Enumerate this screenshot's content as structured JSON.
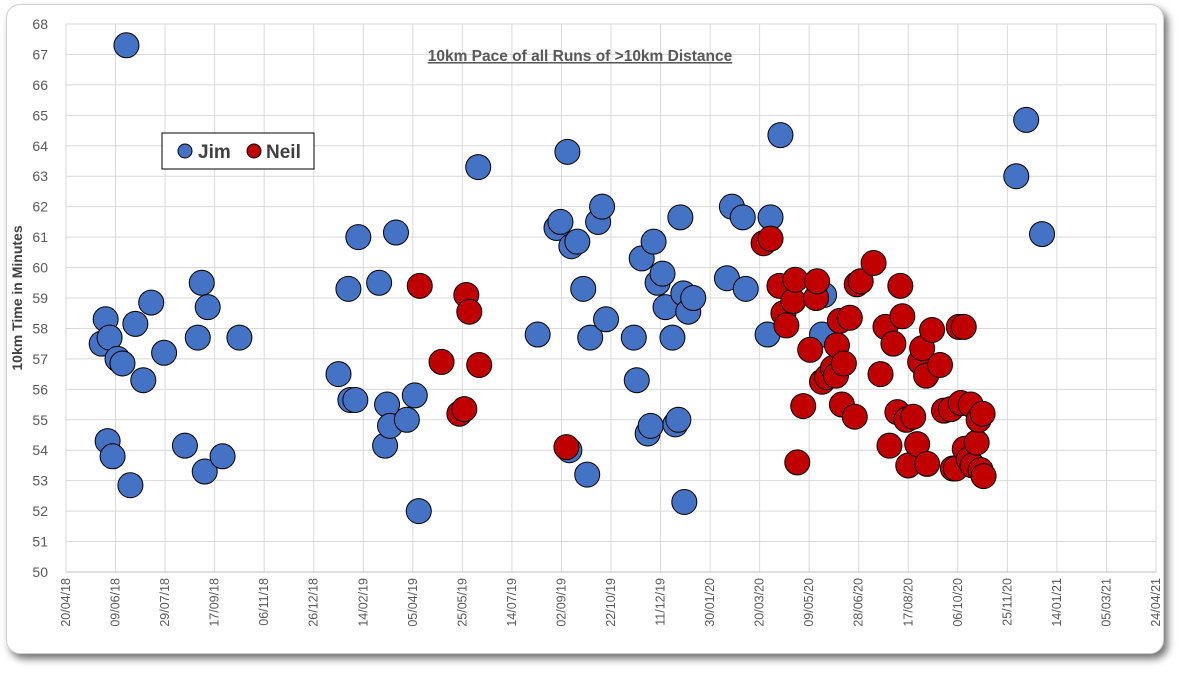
{
  "chart_data": {
    "type": "scatter",
    "title": "10km Pace of all Runs of >10km Distance",
    "ylabel": "10km Time in Minutes",
    "xlabel": "",
    "ylim": [
      50,
      68
    ],
    "yticks": [
      "50",
      "51",
      "52",
      "53",
      "54",
      "55",
      "56",
      "57",
      "58",
      "59",
      "60",
      "61",
      "62",
      "63",
      "64",
      "65",
      "66",
      "67",
      "68"
    ],
    "xlim": [
      "20/04/18",
      "24/04/21"
    ],
    "xticks": [
      "20/04/18",
      "09/06/18",
      "29/07/18",
      "17/09/18",
      "06/11/18",
      "26/12/18",
      "14/02/19",
      "05/04/19",
      "25/05/19",
      "14/07/19",
      "02/09/19",
      "22/10/19",
      "11/12/19",
      "30/01/20",
      "20/03/20",
      "09/05/20",
      "28/06/20",
      "17/08/20",
      "06/10/20",
      "25/11/20",
      "14/01/21",
      "05/03/21",
      "24/04/21"
    ],
    "grid": true,
    "legend_position": "top-left",
    "series": [
      {
        "name": "Jim",
        "color": "#4472C4",
        "points": [
          {
            "x": "26/05/18",
            "y": 57.5
          },
          {
            "x": "30/05/18",
            "y": 58.3
          },
          {
            "x": "01/06/18",
            "y": 54.3
          },
          {
            "x": "03/06/18",
            "y": 57.7
          },
          {
            "x": "06/06/18",
            "y": 53.8
          },
          {
            "x": "11/06/18",
            "y": 57.0
          },
          {
            "x": "16/06/18",
            "y": 56.85
          },
          {
            "x": "20/06/18",
            "y": 67.3
          },
          {
            "x": "24/06/18",
            "y": 52.85
          },
          {
            "x": "29/06/18",
            "y": 58.15
          },
          {
            "x": "07/07/18",
            "y": 56.3
          },
          {
            "x": "15/07/18",
            "y": 58.85
          },
          {
            "x": "28/07/18",
            "y": 57.2
          },
          {
            "x": "18/08/18",
            "y": 54.15
          },
          {
            "x": "31/08/18",
            "y": 57.7
          },
          {
            "x": "04/09/18",
            "y": 59.5
          },
          {
            "x": "07/09/18",
            "y": 53.3
          },
          {
            "x": "10/09/18",
            "y": 58.7
          },
          {
            "x": "25/09/18",
            "y": 53.8
          },
          {
            "x": "12/10/18",
            "y": 57.7
          },
          {
            "x": "20/01/19",
            "y": 56.5
          },
          {
            "x": "30/01/19",
            "y": 59.3
          },
          {
            "x": "01/02/19",
            "y": 55.65
          },
          {
            "x": "06/02/19",
            "y": 55.65
          },
          {
            "x": "09/02/19",
            "y": 61.0
          },
          {
            "x": "02/03/19",
            "y": 59.5
          },
          {
            "x": "08/03/19",
            "y": 54.15
          },
          {
            "x": "10/03/19",
            "y": 55.5
          },
          {
            "x": "13/03/19",
            "y": 54.8
          },
          {
            "x": "19/03/19",
            "y": 61.15
          },
          {
            "x": "30/03/19",
            "y": 55.0
          },
          {
            "x": "07/04/19",
            "y": 55.8
          },
          {
            "x": "11/04/19",
            "y": 52.0
          },
          {
            "x": "10/06/19",
            "y": 63.3
          },
          {
            "x": "09/08/19",
            "y": 57.8
          },
          {
            "x": "28/08/19",
            "y": 61.3
          },
          {
            "x": "01/09/19",
            "y": 61.5
          },
          {
            "x": "08/09/19",
            "y": 63.8
          },
          {
            "x": "12/09/19",
            "y": 60.7
          },
          {
            "x": "10/09/19",
            "y": 54.0
          },
          {
            "x": "18/09/19",
            "y": 60.85
          },
          {
            "x": "24/09/19",
            "y": 59.3
          },
          {
            "x": "28/09/19",
            "y": 53.2
          },
          {
            "x": "01/10/19",
            "y": 57.7
          },
          {
            "x": "09/10/19",
            "y": 61.5
          },
          {
            "x": "13/10/19",
            "y": 62.0
          },
          {
            "x": "17/10/19",
            "y": 58.3
          },
          {
            "x": "14/11/19",
            "y": 57.7
          },
          {
            "x": "17/11/19",
            "y": 56.3
          },
          {
            "x": "22/11/19",
            "y": 60.3
          },
          {
            "x": "28/11/19",
            "y": 54.55
          },
          {
            "x": "01/12/19",
            "y": 54.8
          },
          {
            "x": "04/12/19",
            "y": 60.85
          },
          {
            "x": "08/12/19",
            "y": 59.5
          },
          {
            "x": "13/12/19",
            "y": 59.8
          },
          {
            "x": "16/12/19",
            "y": 58.7
          },
          {
            "x": "23/12/19",
            "y": 57.7
          },
          {
            "x": "26/12/19",
            "y": 54.85
          },
          {
            "x": "29/12/19",
            "y": 55.0
          },
          {
            "x": "31/12/19",
            "y": 61.65
          },
          {
            "x": "04/01/20",
            "y": 52.3
          },
          {
            "x": "03/01/20",
            "y": 59.15
          },
          {
            "x": "08/01/20",
            "y": 58.55
          },
          {
            "x": "13/01/20",
            "y": 59.0
          },
          {
            "x": "16/02/20",
            "y": 59.65
          },
          {
            "x": "21/02/20",
            "y": 62.0
          },
          {
            "x": "03/03/20",
            "y": 61.65
          },
          {
            "x": "06/03/20",
            "y": 59.3
          },
          {
            "x": "28/03/20",
            "y": 57.8
          },
          {
            "x": "31/03/20",
            "y": 61.65
          },
          {
            "x": "10/04/20",
            "y": 64.35
          },
          {
            "x": "22/05/20",
            "y": 57.8
          },
          {
            "x": "24/05/20",
            "y": 59.1
          },
          {
            "x": "04/12/20",
            "y": 63.0
          },
          {
            "x": "14/12/20",
            "y": 64.85
          },
          {
            "x": "30/12/20",
            "y": 61.1
          }
        ]
      },
      {
        "name": "Neil",
        "color": "#C00000",
        "points": [
          {
            "x": "12/04/19",
            "y": 59.4
          },
          {
            "x": "04/05/19",
            "y": 56.9
          },
          {
            "x": "22/05/19",
            "y": 55.2
          },
          {
            "x": "27/05/19",
            "y": 55.35
          },
          {
            "x": "29/05/19",
            "y": 59.1
          },
          {
            "x": "01/06/19",
            "y": 58.55
          },
          {
            "x": "11/06/19",
            "y": 56.8
          },
          {
            "x": "07/09/19",
            "y": 54.1
          },
          {
            "x": "24/03/20",
            "y": 60.8
          },
          {
            "x": "31/03/20",
            "y": 60.95
          },
          {
            "x": "09/04/20",
            "y": 59.4
          },
          {
            "x": "13/04/20",
            "y": 58.5
          },
          {
            "x": "16/04/20",
            "y": 58.1
          },
          {
            "x": "23/04/20",
            "y": 58.9
          },
          {
            "x": "25/04/20",
            "y": 59.6
          },
          {
            "x": "27/04/20",
            "y": 53.6
          },
          {
            "x": "03/05/20",
            "y": 55.45
          },
          {
            "x": "10/05/20",
            "y": 57.3
          },
          {
            "x": "16/05/20",
            "y": 59.0
          },
          {
            "x": "17/05/20",
            "y": 59.55
          },
          {
            "x": "22/05/20",
            "y": 56.25
          },
          {
            "x": "27/05/20",
            "y": 56.4
          },
          {
            "x": "02/06/20",
            "y": 56.7
          },
          {
            "x": "05/06/20",
            "y": 56.45
          },
          {
            "x": "06/06/20",
            "y": 57.45
          },
          {
            "x": "09/06/20",
            "y": 58.25
          },
          {
            "x": "11/06/20",
            "y": 55.5
          },
          {
            "x": "13/06/20",
            "y": 56.85
          },
          {
            "x": "19/06/20",
            "y": 58.35
          },
          {
            "x": "24/06/20",
            "y": 55.1
          },
          {
            "x": "26/06/20",
            "y": 59.45
          },
          {
            "x": "30/06/20",
            "y": 59.55
          },
          {
            "x": "13/07/20",
            "y": 60.15
          },
          {
            "x": "20/07/20",
            "y": 56.5
          },
          {
            "x": "25/07/20",
            "y": 58.05
          },
          {
            "x": "29/07/20",
            "y": 54.15
          },
          {
            "x": "02/08/20",
            "y": 57.5
          },
          {
            "x": "06/08/20",
            "y": 55.25
          },
          {
            "x": "09/08/20",
            "y": 59.4
          },
          {
            "x": "11/08/20",
            "y": 58.4
          },
          {
            "x": "15/08/20",
            "y": 55.0
          },
          {
            "x": "17/08/20",
            "y": 53.5
          },
          {
            "x": "22/08/20",
            "y": 55.1
          },
          {
            "x": "26/08/20",
            "y": 54.2
          },
          {
            "x": "29/08/20",
            "y": 56.9
          },
          {
            "x": "31/08/20",
            "y": 57.35
          },
          {
            "x": "04/09/20",
            "y": 56.45
          },
          {
            "x": "05/09/20",
            "y": 53.55
          },
          {
            "x": "10/09/20",
            "y": 57.95
          },
          {
            "x": "18/09/20",
            "y": 56.8
          },
          {
            "x": "22/09/20",
            "y": 55.3
          },
          {
            "x": "29/09/20",
            "y": 55.35
          },
          {
            "x": "01/10/20",
            "y": 53.4
          },
          {
            "x": "04/10/20",
            "y": 53.4
          },
          {
            "x": "07/10/20",
            "y": 58.05
          },
          {
            "x": "09/10/20",
            "y": 55.55
          },
          {
            "x": "12/10/20",
            "y": 58.05
          },
          {
            "x": "13/10/20",
            "y": 54.05
          },
          {
            "x": "17/10/20",
            "y": 53.7
          },
          {
            "x": "19/10/20",
            "y": 55.5
          },
          {
            "x": "21/10/20",
            "y": 53.5
          },
          {
            "x": "25/10/20",
            "y": 54.25
          },
          {
            "x": "27/10/20",
            "y": 55.0
          },
          {
            "x": "29/10/20",
            "y": 53.35
          },
          {
            "x": "31/10/20",
            "y": 55.2
          },
          {
            "x": "01/11/20",
            "y": 53.15
          }
        ]
      }
    ]
  }
}
